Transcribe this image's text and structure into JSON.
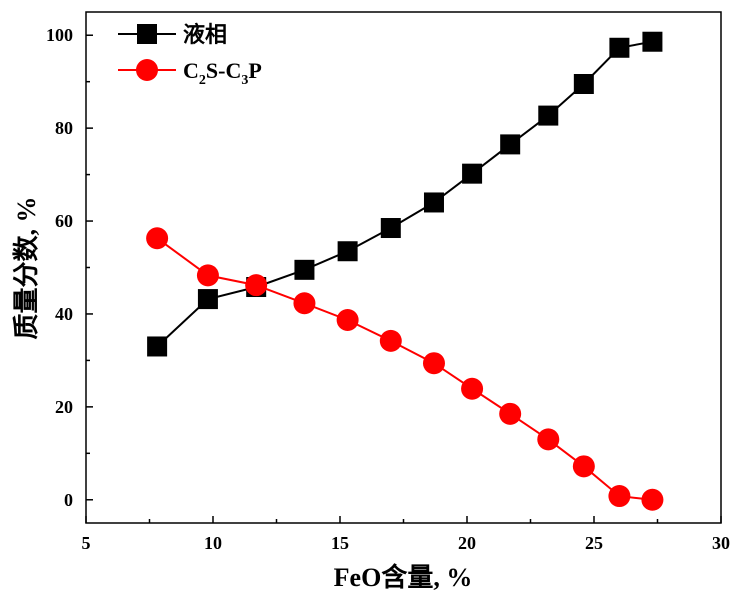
{
  "chart_data": {
    "type": "line",
    "title": "",
    "xlabel": "FeO含量, %",
    "ylabel": "质量分数, %",
    "xlim": [
      5,
      30
    ],
    "ylim": [
      -5,
      105
    ],
    "xticks": [
      5,
      10,
      15,
      20,
      25,
      30
    ],
    "yticks": [
      0,
      20,
      40,
      60,
      80,
      100
    ],
    "grid": false,
    "legend_position": "top-left",
    "series": [
      {
        "name": "液相",
        "color": "#000000",
        "marker": "square",
        "x": [
          7.8,
          9.8,
          11.7,
          13.6,
          15.3,
          17.0,
          18.7,
          20.2,
          21.7,
          23.2,
          24.6,
          26.0,
          27.3
        ],
        "y": [
          33,
          43.2,
          45.8,
          49.5,
          53.5,
          58.5,
          64,
          70.2,
          76.5,
          82.7,
          89.5,
          97.3,
          98.6
        ]
      },
      {
        "name": "C2S-C3P",
        "legend_parts": [
          "C",
          "2",
          "S-C",
          "3",
          "P"
        ],
        "color": "#ff0000",
        "marker": "circle",
        "x": [
          7.8,
          9.8,
          11.7,
          13.6,
          15.3,
          17.0,
          18.7,
          20.2,
          21.7,
          23.2,
          24.6,
          26.0,
          27.3
        ],
        "y": [
          56.3,
          48.3,
          46.2,
          42.3,
          38.7,
          34.2,
          29.4,
          23.9,
          18.5,
          13,
          7.2,
          0.8,
          0
        ]
      }
    ]
  }
}
